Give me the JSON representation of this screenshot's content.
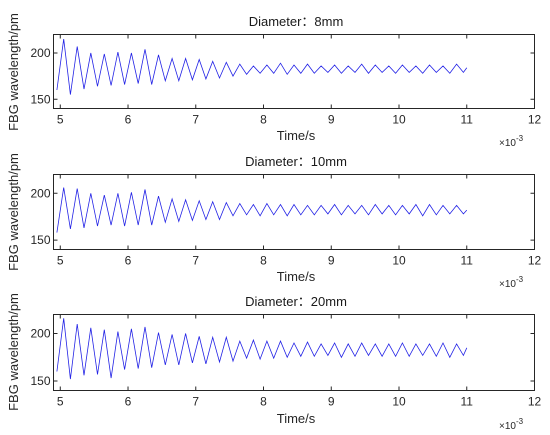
{
  "chart_data": [
    {
      "type": "line",
      "title": "Diameter：8mm",
      "xlabel": "Time/s",
      "ylabel": "FBG wavelength/pm",
      "x_multiplier": "×10",
      "x_multiplier_exp": "-3",
      "xlim": [
        4.9,
        12
      ],
      "ylim": [
        140,
        220
      ],
      "xticks": [
        "5",
        "6",
        "7",
        "8",
        "9",
        "10",
        "11",
        "12"
      ],
      "yticks": [
        "150",
        "200"
      ],
      "grid": false,
      "color": "#2323e6",
      "x": [
        4.95,
        5.05,
        5.15,
        5.25,
        5.35,
        5.45,
        5.55,
        5.65,
        5.75,
        5.85,
        5.95,
        6.05,
        6.15,
        6.25,
        6.35,
        6.45,
        6.55,
        6.65,
        6.75,
        6.85,
        6.95,
        7.05,
        7.15,
        7.25,
        7.35,
        7.45,
        7.55,
        7.65,
        7.75,
        7.85,
        7.95,
        8.05,
        8.15,
        8.25,
        8.35,
        8.45,
        8.55,
        8.65,
        8.75,
        8.85,
        8.95,
        9.05,
        9.15,
        9.25,
        9.35,
        9.45,
        9.55,
        9.65,
        9.75,
        9.85,
        9.95,
        10.05,
        10.15,
        10.25,
        10.35,
        10.45,
        10.55,
        10.65,
        10.75,
        10.85,
        10.95,
        11.0
      ],
      "values": [
        160,
        215,
        155,
        207,
        161,
        200,
        164,
        199,
        165,
        201,
        166,
        200,
        167,
        204,
        166,
        198,
        170,
        194,
        170,
        194,
        171,
        193,
        172,
        191,
        173,
        190,
        175,
        188,
        177,
        186,
        178,
        187,
        178,
        189,
        177,
        187,
        178,
        188,
        178,
        186,
        179,
        187,
        178,
        186,
        179,
        188,
        178,
        187,
        179,
        186,
        178,
        187,
        179,
        186,
        178,
        187,
        179,
        186,
        178,
        188,
        179,
        184
      ]
    },
    {
      "type": "line",
      "title": "Diameter：10mm",
      "xlabel": "Time/s",
      "ylabel": "FBG wavelength/pm",
      "x_multiplier": "×10",
      "x_multiplier_exp": "-3",
      "xlim": [
        4.9,
        12
      ],
      "ylim": [
        140,
        220
      ],
      "xticks": [
        "5",
        "6",
        "7",
        "8",
        "9",
        "10",
        "11",
        "12"
      ],
      "yticks": [
        "150",
        "200"
      ],
      "grid": false,
      "color": "#2323e6",
      "x": [
        4.95,
        5.05,
        5.15,
        5.25,
        5.35,
        5.45,
        5.55,
        5.65,
        5.75,
        5.85,
        5.95,
        6.05,
        6.15,
        6.25,
        6.35,
        6.45,
        6.55,
        6.65,
        6.75,
        6.85,
        6.95,
        7.05,
        7.15,
        7.25,
        7.35,
        7.45,
        7.55,
        7.65,
        7.75,
        7.85,
        7.95,
        8.05,
        8.15,
        8.25,
        8.35,
        8.45,
        8.55,
        8.65,
        8.75,
        8.85,
        8.95,
        9.05,
        9.15,
        9.25,
        9.35,
        9.45,
        9.55,
        9.65,
        9.75,
        9.85,
        9.95,
        10.05,
        10.15,
        10.25,
        10.35,
        10.45,
        10.55,
        10.65,
        10.75,
        10.85,
        10.95,
        11.0
      ],
      "values": [
        158,
        206,
        162,
        205,
        163,
        200,
        165,
        198,
        166,
        200,
        165,
        201,
        166,
        204,
        166,
        197,
        169,
        194,
        170,
        193,
        171,
        192,
        172,
        191,
        172,
        190,
        176,
        189,
        177,
        188,
        176,
        189,
        177,
        188,
        176,
        188,
        177,
        187,
        177,
        187,
        178,
        188,
        177,
        187,
        178,
        187,
        177,
        188,
        178,
        187,
        177,
        187,
        178,
        188,
        176,
        188,
        177,
        187,
        178,
        187,
        178,
        182
      ]
    },
    {
      "type": "line",
      "title": "Diameter：20mm",
      "xlabel": "Time/s",
      "ylabel": "FBG wavelength/pm",
      "x_multiplier": "×10",
      "x_multiplier_exp": "-3",
      "xlim": [
        4.9,
        12
      ],
      "ylim": [
        140,
        220
      ],
      "xticks": [
        "5",
        "6",
        "7",
        "8",
        "9",
        "10",
        "11",
        "12"
      ],
      "yticks": [
        "150",
        "200"
      ],
      "grid": false,
      "color": "#2323e6",
      "x": [
        4.95,
        5.05,
        5.15,
        5.25,
        5.35,
        5.45,
        5.55,
        5.65,
        5.75,
        5.85,
        5.95,
        6.05,
        6.15,
        6.25,
        6.35,
        6.45,
        6.55,
        6.65,
        6.75,
        6.85,
        6.95,
        7.05,
        7.15,
        7.25,
        7.35,
        7.45,
        7.55,
        7.65,
        7.75,
        7.85,
        7.95,
        8.05,
        8.15,
        8.25,
        8.35,
        8.45,
        8.55,
        8.65,
        8.75,
        8.85,
        8.95,
        9.05,
        9.15,
        9.25,
        9.35,
        9.45,
        9.55,
        9.65,
        9.75,
        9.85,
        9.95,
        10.05,
        10.15,
        10.25,
        10.35,
        10.45,
        10.55,
        10.65,
        10.75,
        10.85,
        10.95,
        11.0
      ],
      "values": [
        160,
        216,
        152,
        210,
        156,
        206,
        157,
        204,
        153,
        202,
        162,
        205,
        163,
        207,
        164,
        201,
        167,
        199,
        167,
        200,
        169,
        197,
        168,
        196,
        170,
        196,
        171,
        192,
        174,
        193,
        173,
        192,
        174,
        192,
        175,
        190,
        176,
        191,
        176,
        189,
        177,
        190,
        175,
        189,
        176,
        190,
        177,
        189,
        176,
        189,
        176,
        190,
        176,
        189,
        177,
        189,
        176,
        190,
        175,
        189,
        177,
        185
      ]
    }
  ]
}
